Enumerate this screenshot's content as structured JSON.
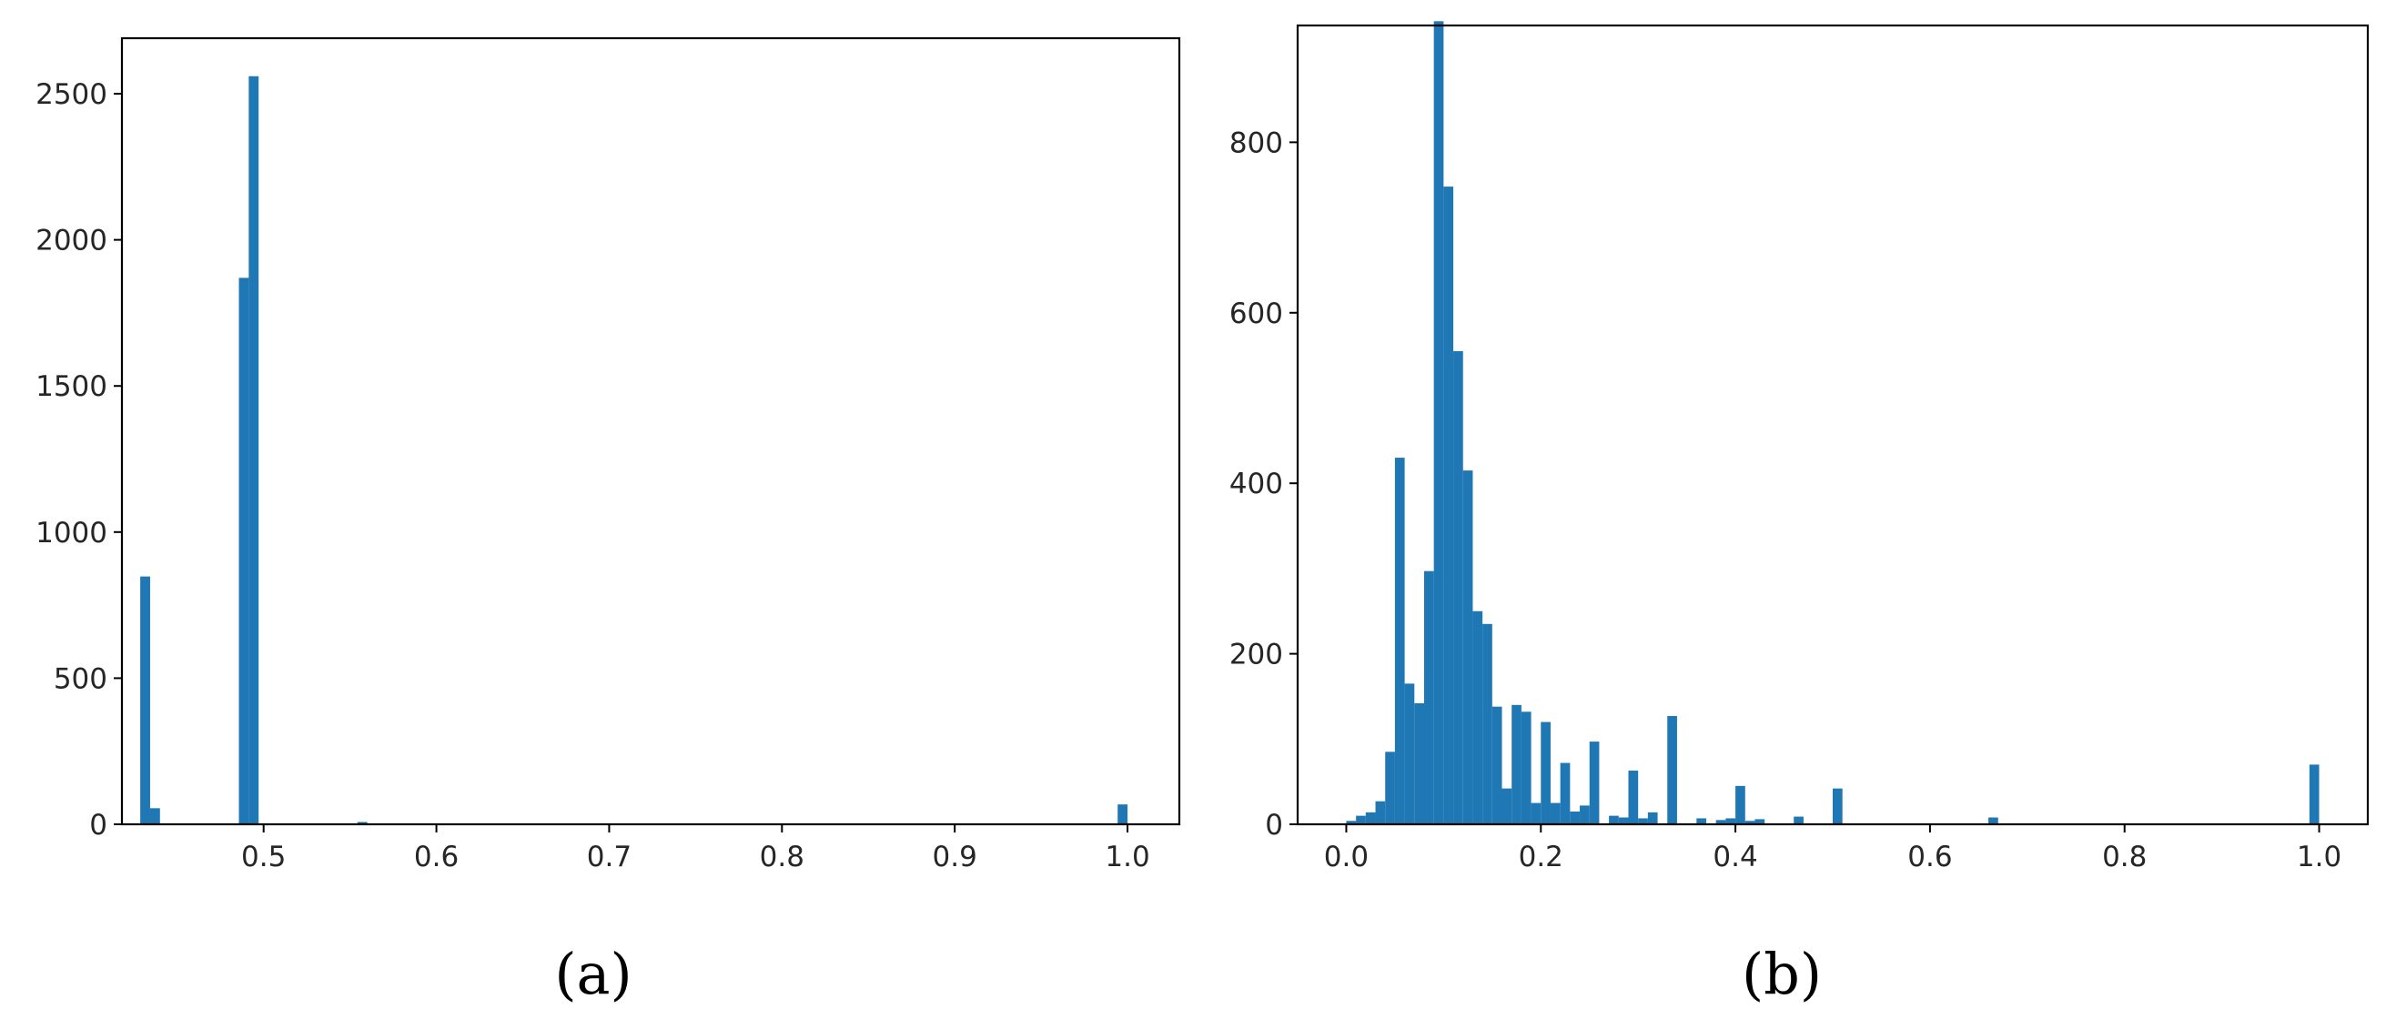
{
  "colors": {
    "bar": "#1f77b4",
    "axis": "#000000",
    "text": "#262626"
  },
  "chart_data": [
    {
      "type": "bar",
      "panel_label": "(a)",
      "xlim": [
        0.418,
        1.03
      ],
      "ylim": [
        0,
        2690
      ],
      "xticks": [
        0.5,
        0.6,
        0.7,
        0.8,
        0.9,
        1.0
      ],
      "xtick_labels": [
        "0.5",
        "0.6",
        "0.7",
        "0.8",
        "0.9",
        "1.0"
      ],
      "yticks": [
        0,
        500,
        1000,
        1500,
        2000,
        2500
      ],
      "ytick_labels": [
        "0",
        "500",
        "1000",
        "1500",
        "2000",
        "2500"
      ],
      "grid": false,
      "bin_width": 0.00571,
      "bins": [
        [
          0.4286,
          848
        ],
        [
          0.4343,
          55
        ],
        [
          0.4857,
          1870
        ],
        [
          0.4914,
          2560
        ],
        [
          0.5543,
          8
        ],
        [
          0.9943,
          68
        ]
      ]
    },
    {
      "type": "bar",
      "panel_label": "(b)",
      "xlim": [
        -0.05,
        1.05
      ],
      "ylim": [
        0,
        937
      ],
      "xticks": [
        0.0,
        0.2,
        0.4,
        0.6,
        0.8,
        1.0
      ],
      "xtick_labels": [
        "0.0",
        "0.2",
        "0.4",
        "0.6",
        "0.8",
        "1.0"
      ],
      "yticks": [
        0,
        200,
        400,
        600,
        800
      ],
      "ytick_labels": [
        "0",
        "200",
        "400",
        "600",
        "800"
      ],
      "grid": false,
      "bin_width": 0.01,
      "bins": [
        [
          0.0,
          4
        ],
        [
          0.01,
          10
        ],
        [
          0.02,
          14
        ],
        [
          0.03,
          27
        ],
        [
          0.04,
          85
        ],
        [
          0.05,
          430
        ],
        [
          0.06,
          165
        ],
        [
          0.07,
          142
        ],
        [
          0.08,
          297
        ],
        [
          0.09,
          942
        ],
        [
          0.1,
          748
        ],
        [
          0.11,
          555
        ],
        [
          0.12,
          415
        ],
        [
          0.13,
          250
        ],
        [
          0.14,
          235
        ],
        [
          0.15,
          138
        ],
        [
          0.16,
          42
        ],
        [
          0.17,
          140
        ],
        [
          0.18,
          132
        ],
        [
          0.19,
          25
        ],
        [
          0.2,
          120
        ],
        [
          0.21,
          25
        ],
        [
          0.22,
          72
        ],
        [
          0.23,
          15
        ],
        [
          0.24,
          22
        ],
        [
          0.25,
          97
        ],
        [
          0.27,
          10
        ],
        [
          0.28,
          8
        ],
        [
          0.29,
          63
        ],
        [
          0.3,
          7
        ],
        [
          0.31,
          14
        ],
        [
          0.33,
          127
        ],
        [
          0.36,
          7
        ],
        [
          0.38,
          5
        ],
        [
          0.39,
          7
        ],
        [
          0.4,
          45
        ],
        [
          0.41,
          4
        ],
        [
          0.42,
          6
        ],
        [
          0.46,
          9
        ],
        [
          0.5,
          42
        ],
        [
          0.66,
          8
        ],
        [
          0.99,
          70
        ]
      ]
    }
  ]
}
